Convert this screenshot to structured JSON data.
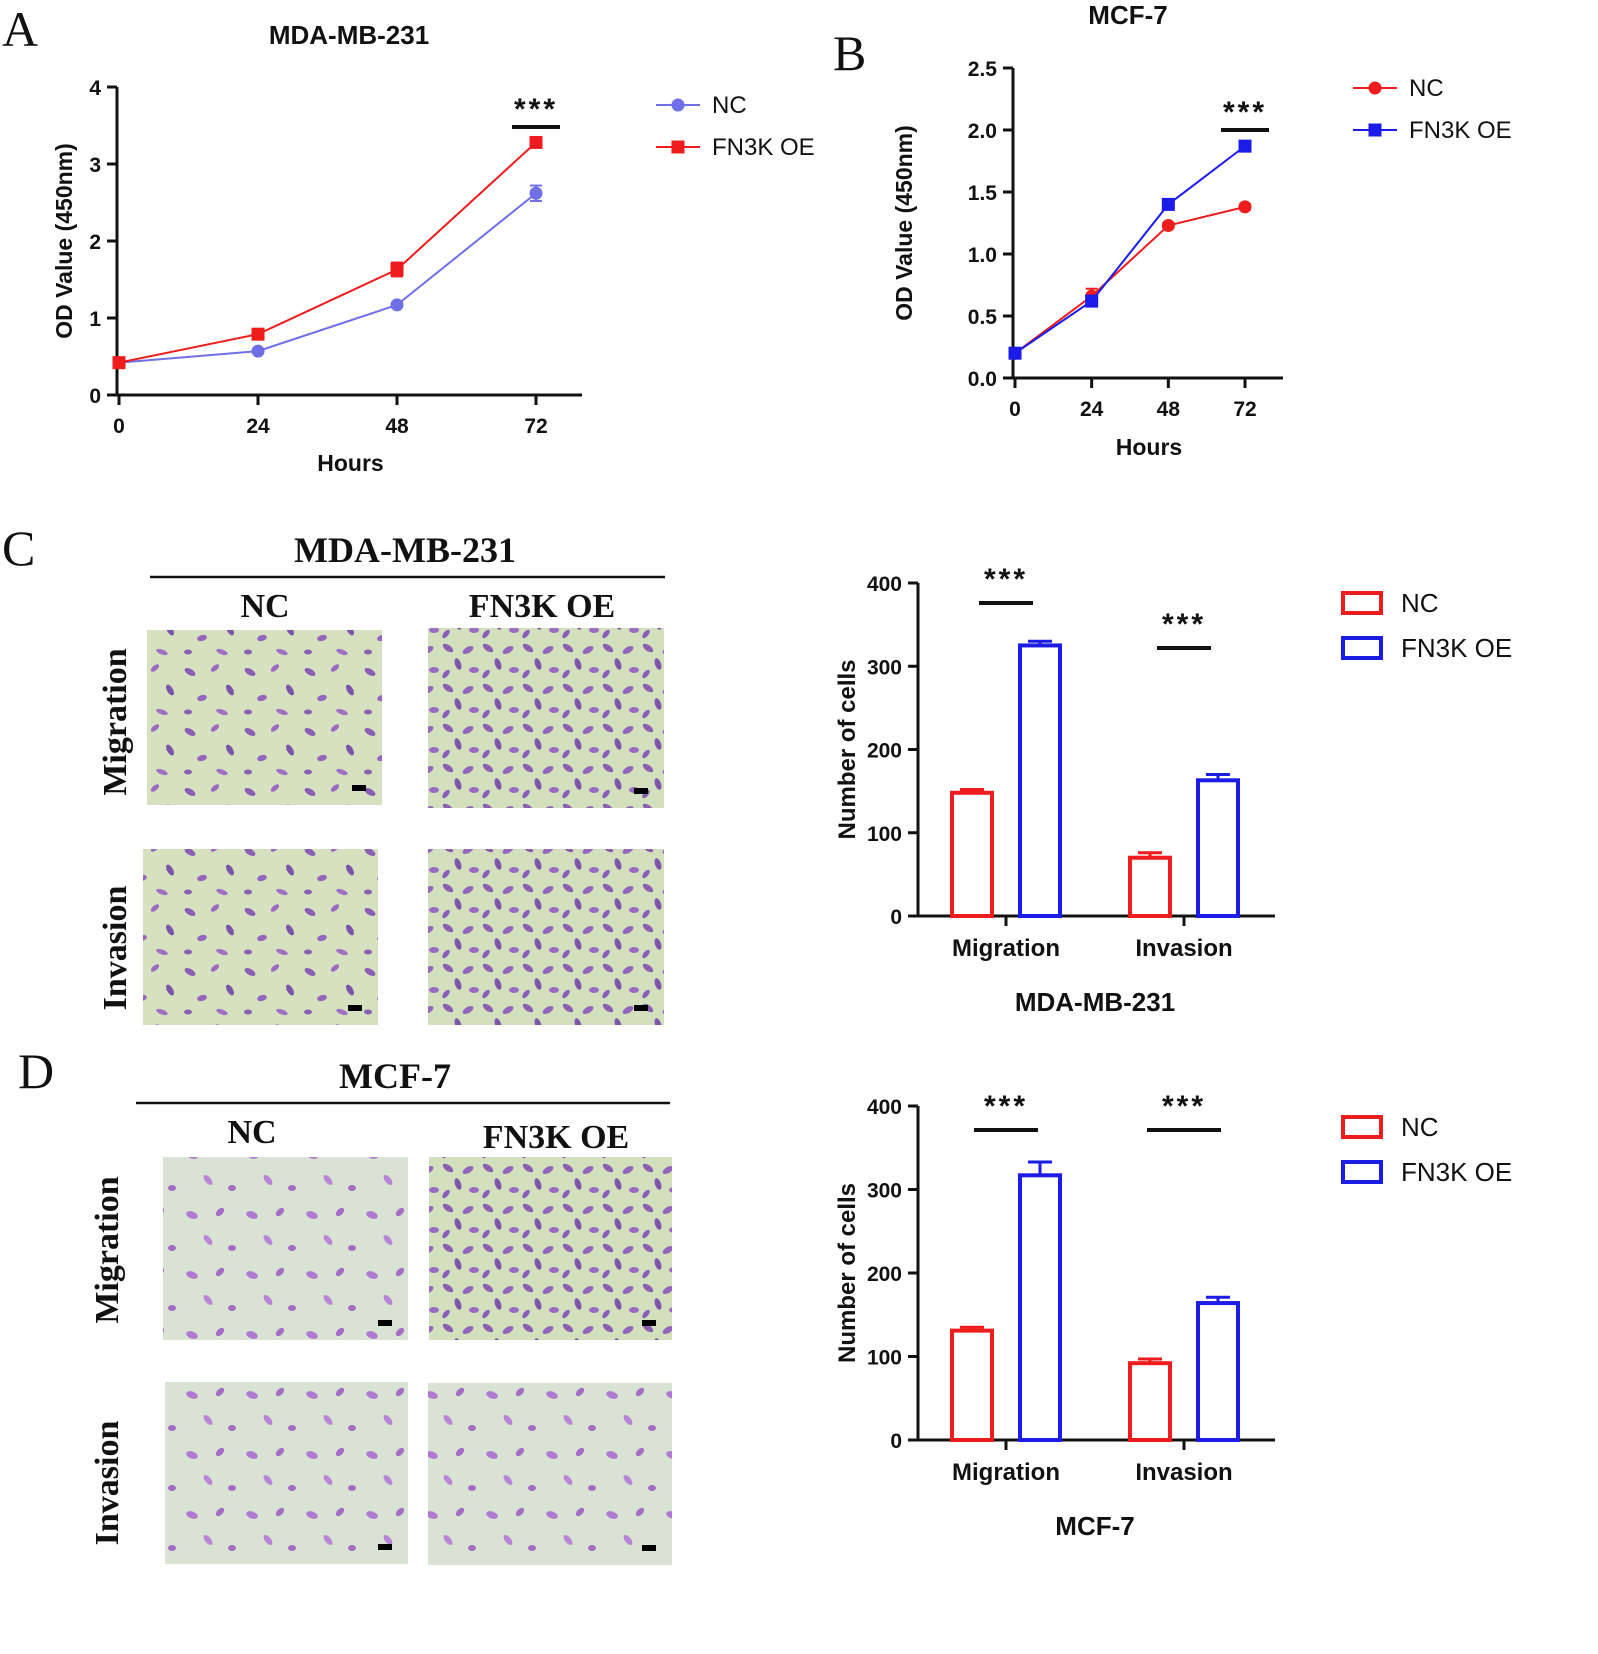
{
  "panels": {
    "A": {
      "letter": "A",
      "chart_data": {
        "type": "line",
        "title": "MDA-MB-231",
        "xlabel": "Hours",
        "ylabel": "OD Value (450nm)",
        "x": [
          0,
          24,
          48,
          72
        ],
        "x_tick_labels": [
          "0",
          "24",
          "48",
          "72"
        ],
        "y_ticks": [
          0,
          1,
          2,
          3,
          4
        ],
        "y_tick_labels": [
          "0",
          "1",
          "2",
          "3",
          "4"
        ],
        "ylim": [
          0,
          4
        ],
        "series": [
          {
            "name": "NC",
            "color": "#6f6fe8",
            "marker": "circle",
            "values": [
              0.42,
              0.57,
              1.17,
              2.62
            ],
            "errors": [
              0.02,
              0.02,
              0.03,
              0.1
            ]
          },
          {
            "name": "FN3K OE",
            "color": "#ee1c1c",
            "marker": "square",
            "values": [
              0.42,
              0.79,
              1.63,
              3.28
            ],
            "errors": [
              0.02,
              0.03,
              0.09,
              0.04
            ]
          }
        ],
        "significance": [
          {
            "x": 72,
            "label": "***"
          }
        ]
      }
    },
    "B": {
      "letter": "B",
      "chart_data": {
        "type": "line",
        "title": "MCF-7",
        "xlabel": "Hours",
        "ylabel": "OD Value (450nm)",
        "x": [
          0,
          24,
          48,
          72
        ],
        "x_tick_labels": [
          "0",
          "24",
          "48",
          "72"
        ],
        "y_ticks": [
          0,
          0.5,
          1,
          1.5,
          2,
          2.5
        ],
        "y_tick_labels": [
          "0.0",
          "0.5",
          "1.0",
          "1.5",
          "2.0",
          "2.5"
        ],
        "ylim": [
          0,
          2.5
        ],
        "series": [
          {
            "name": "NC",
            "color": "#ee1c1c",
            "marker": "circle",
            "values": [
              0.2,
              0.66,
              1.23,
              1.38
            ],
            "errors": [
              0.02,
              0.06,
              0.02,
              0.02
            ]
          },
          {
            "name": "FN3K OE",
            "color": "#1c1ce8",
            "marker": "square",
            "values": [
              0.2,
              0.62,
              1.4,
              1.87
            ],
            "errors": [
              0.02,
              0.02,
              0.02,
              0.02
            ]
          }
        ],
        "significance": [
          {
            "x": 72,
            "label": "***"
          }
        ]
      }
    },
    "C": {
      "letter": "C",
      "cell_line": "MDA-MB-231",
      "col_labels": [
        "NC",
        "FN3K OE"
      ],
      "row_labels": [
        "Migration",
        "Invasion"
      ],
      "chart_data": {
        "type": "bar",
        "categories": [
          "Migration",
          "Invasion"
        ],
        "xlabel": "MDA-MB-231",
        "ylabel": "Number of cells",
        "y_ticks": [
          0,
          100,
          200,
          300,
          400
        ],
        "y_tick_labels": [
          "0",
          "100",
          "200",
          "300",
          "400"
        ],
        "ylim": [
          0,
          400
        ],
        "series": [
          {
            "name": "NC",
            "color": "#ee1c1c",
            "values": [
              148,
              70
            ],
            "errors": [
              4,
              6
            ]
          },
          {
            "name": "FN3K OE",
            "color": "#1c1ce8",
            "values": [
              325,
              163
            ],
            "errors": [
              5,
              7
            ]
          }
        ],
        "significance": [
          "***",
          "***"
        ]
      }
    },
    "D": {
      "letter": "D",
      "cell_line": "MCF-7",
      "col_labels": [
        "NC",
        "FN3K OE"
      ],
      "row_labels": [
        "Migration",
        "Invasion"
      ],
      "chart_data": {
        "type": "bar",
        "categories": [
          "Migration",
          "Invasion"
        ],
        "xlabel": "MCF-7",
        "ylabel": "Number of cells",
        "y_ticks": [
          0,
          100,
          200,
          300,
          400
        ],
        "y_tick_labels": [
          "0",
          "100",
          "200",
          "300",
          "400"
        ],
        "ylim": [
          0,
          400
        ],
        "series": [
          {
            "name": "NC",
            "color": "#ee1c1c",
            "values": [
              131,
              92
            ],
            "errors": [
              4,
              5
            ]
          },
          {
            "name": "FN3K OE",
            "color": "#1c1ce8",
            "values": [
              317,
              164
            ],
            "errors": [
              16,
              7
            ]
          }
        ],
        "significance": [
          "***",
          "***"
        ]
      }
    }
  }
}
